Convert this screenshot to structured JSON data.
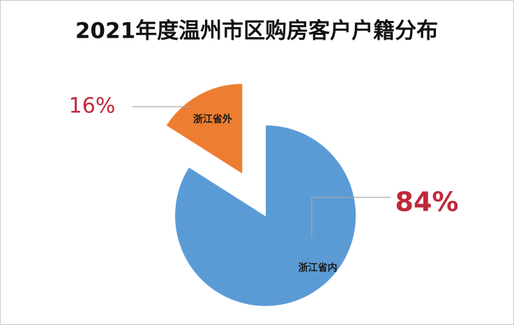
{
  "chart_data": {
    "type": "pie",
    "title": "2021年度温州市区购房客户户籍分布",
    "categories": [
      "浙江省内",
      "浙江省外"
    ],
    "values": [
      84,
      16
    ],
    "value_labels": [
      "84%",
      "16%"
    ],
    "colors": [
      "#5b9bd5",
      "#ed7d31"
    ]
  }
}
